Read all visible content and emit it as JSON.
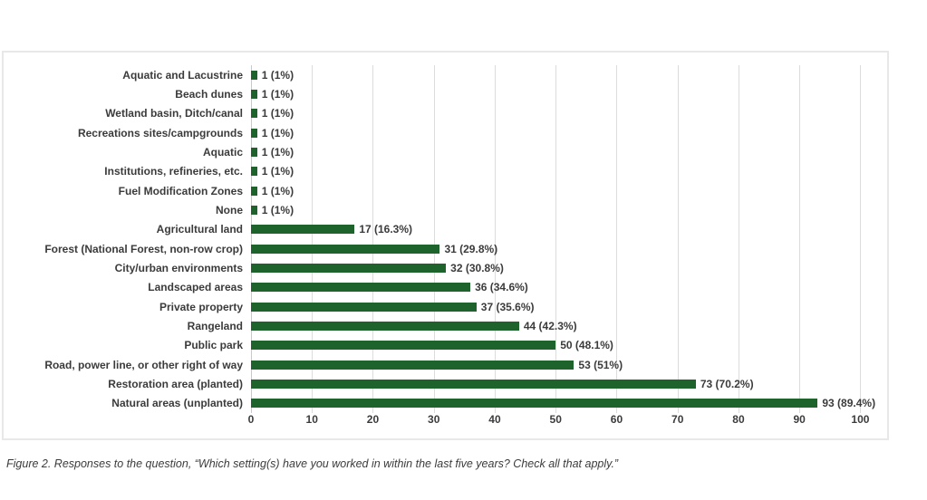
{
  "caption": "Figure 2. Responses to the question, “Which setting(s) have you worked in within the last five years? Check all that apply.”",
  "colors": {
    "bar": "#1E632C",
    "gridline": "#DCDCDC",
    "axis_line": "#C9C9C9",
    "box_border": "#E8E8E8",
    "text": "#3B3B3B"
  },
  "chart_data": {
    "type": "bar",
    "orientation": "horizontal",
    "title": "",
    "xlabel": "",
    "ylabel": "",
    "grid": true,
    "xlim": [
      0,
      103.8
    ],
    "xticks": [
      0,
      10,
      20,
      30,
      40,
      50,
      60,
      70,
      80,
      90,
      100
    ],
    "categories": [
      "Aquatic and Lacustrine",
      "Beach dunes",
      "Wetland basin, Ditch/canal",
      "Recreations sites/campgrounds",
      "Aquatic",
      "Institutions, refineries, etc.",
      "Fuel Modification Zones",
      "None",
      "Agricultural land",
      "Forest (National Forest, non-row crop)",
      "City/urban environments",
      "Landscaped areas",
      "Private property",
      "Rangeland",
      "Public park",
      "Road, power line, or other right of way",
      "Restoration area (planted)",
      "Natural areas (unplanted)"
    ],
    "values": [
      1,
      1,
      1,
      1,
      1,
      1,
      1,
      1,
      17,
      31,
      32,
      36,
      37,
      44,
      50,
      53,
      73,
      93
    ],
    "percentages": [
      1,
      1,
      1,
      1,
      1,
      1,
      1,
      1,
      16.3,
      29.8,
      30.8,
      34.6,
      35.6,
      42.3,
      48.1,
      51,
      70.2,
      89.4
    ],
    "value_labels": [
      "1 (1%)",
      "1 (1%)",
      "1 (1%)",
      "1 (1%)",
      "1 (1%)",
      "1 (1%)",
      "1 (1%)",
      "1 (1%)",
      "17 (16.3%)",
      "31 (29.8%)",
      "32 (30.8%)",
      "36 (34.6%)",
      "37 (35.6%)",
      "44 (42.3%)",
      "50 (48.1%)",
      "53 (51%)",
      "73 (70.2%)",
      "93 (89.4%)"
    ]
  }
}
